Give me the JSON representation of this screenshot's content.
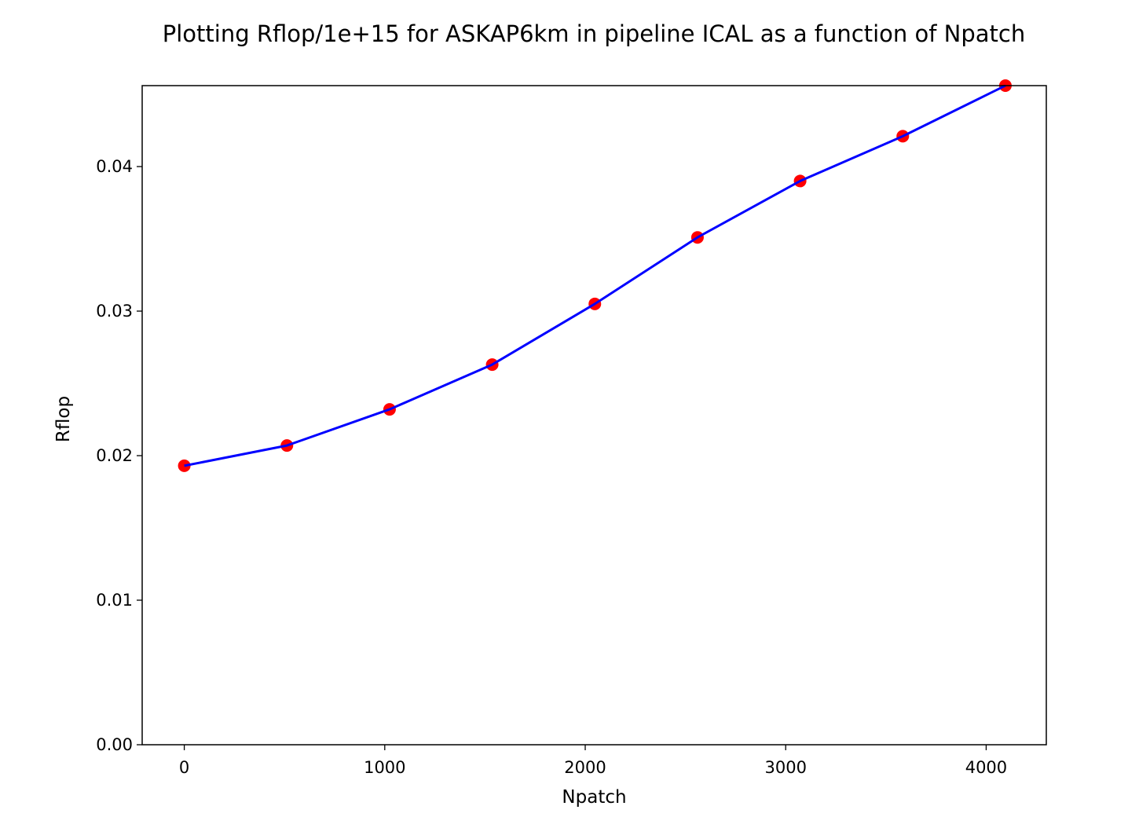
{
  "chart_data": {
    "type": "line",
    "title": "Plotting Rflop/1e+15 for ASKAP6km in pipeline ICAL as a function of Npatch",
    "xlabel": "Npatch",
    "ylabel": "Rflop",
    "xlim": [
      -210,
      4300
    ],
    "ylim": [
      0.0,
      0.0456
    ],
    "xticks": [
      0,
      1000,
      2000,
      3000,
      4000
    ],
    "xtick_labels": [
      "0",
      "1000",
      "2000",
      "3000",
      "4000"
    ],
    "yticks": [
      0.0,
      0.01,
      0.02,
      0.03,
      0.04
    ],
    "ytick_labels": [
      "0.00",
      "0.01",
      "0.02",
      "0.03",
      "0.04"
    ],
    "grid": false,
    "series": [
      {
        "line_color": "#0000ff",
        "marker_color": "#ff0000",
        "x": [
          0,
          512,
          1024,
          1536,
          2048,
          2560,
          3072,
          3584,
          4096
        ],
        "y": [
          0.0193,
          0.0207,
          0.0232,
          0.0263,
          0.0305,
          0.0351,
          0.039,
          0.0421,
          0.0456
        ]
      }
    ]
  }
}
